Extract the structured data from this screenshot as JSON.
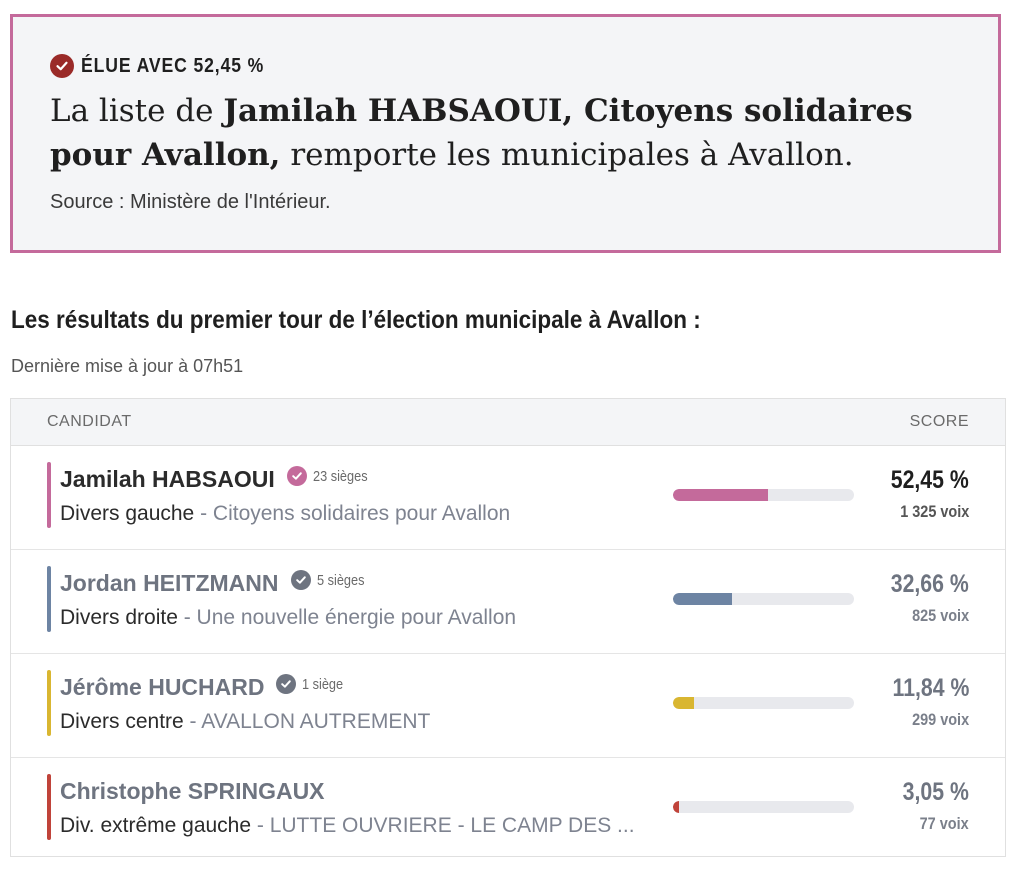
{
  "winner_banner": {
    "badge": "ÉLUE AVEC 52,45 %",
    "badge_icon": "check-circle-icon",
    "badge_color": "#9a2a28",
    "headline_prefix": "La liste de ",
    "headline_bold": "Jamilah HABSAOUI, Citoyens solidaires pour Avallon,",
    "headline_suffix": " remporte les municipales à Avallon.",
    "source": "Source : Ministère de l'Intérieur.",
    "border_color": "#c46a9b"
  },
  "section": {
    "title": "Les résultats du premier tour de l’élection municipale à Avallon :",
    "last_update": "Dernière mise à jour à 07h51"
  },
  "table": {
    "col_candidate": "CANDIDAT",
    "col_score": "SCORE",
    "rows": [
      {
        "name": "Jamilah HABSAOUI",
        "seats": "23 sièges",
        "seat_icon_color": "#c46a9b",
        "party": "Divers gauche",
        "separator": " - ",
        "list": "Citoyens solidaires pour Avallon",
        "percent": "52,45 %",
        "score_fraction": 0.5245,
        "votes": "1 325 voix",
        "color": "#c46a9b",
        "winner": true
      },
      {
        "name": "Jordan HEITZMANN",
        "seats": "5 sièges",
        "seat_icon_color": "#6e7480",
        "party": "Divers droite",
        "separator": " - ",
        "list": "Une nouvelle énergie pour Avallon",
        "percent": "32,66 %",
        "score_fraction": 0.3266,
        "votes": "825 voix",
        "color": "#6d84a3",
        "winner": false
      },
      {
        "name": "Jérôme HUCHARD",
        "seats": "1 siège",
        "seat_icon_color": "#6e7480",
        "party": "Divers centre",
        "separator": " - ",
        "list": "AVALLON AUTREMENT",
        "percent": "11,84 %",
        "score_fraction": 0.1184,
        "votes": "299 voix",
        "color": "#d9b631",
        "winner": false
      },
      {
        "name": "Christophe SPRINGAUX",
        "seats": "",
        "seat_icon_color": "",
        "party": "Div. extrême gauche",
        "separator": " - ",
        "list": "LUTTE OUVRIERE - LE CAMP DES ...",
        "percent": "3,05 %",
        "score_fraction": 0.0305,
        "votes": "77 voix",
        "color": "#c0433a",
        "winner": false
      }
    ]
  }
}
